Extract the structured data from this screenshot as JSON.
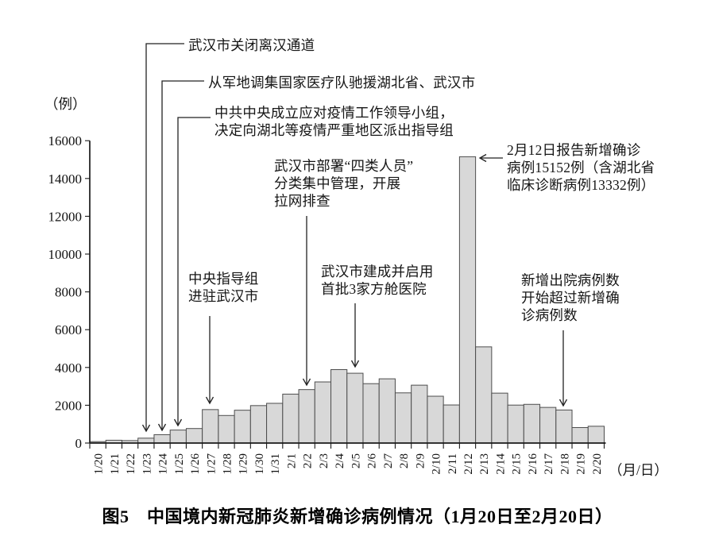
{
  "figure": {
    "y_axis_unit": "（例）",
    "x_axis_unit": "（月/日）",
    "caption": "图5　中国境内新冠肺炎新增确诊病例情况（1月20日至2月20日）"
  },
  "chart_data": {
    "type": "bar",
    "title": "图5　中国境内新冠肺炎新增确诊病例情况（1月20日至2月20日）",
    "xlabel": "（月/日）",
    "ylabel": "（例）",
    "ylim": [
      0,
      16000
    ],
    "yticks": [
      0,
      2000,
      4000,
      6000,
      8000,
      10000,
      12000,
      14000,
      16000
    ],
    "grid": false,
    "legend": "none",
    "bar_fill": "#d8d8d8",
    "bar_stroke": "#4d4d4d",
    "categories": [
      "1/20",
      "1/21",
      "1/22",
      "1/23",
      "1/24",
      "1/25",
      "1/26",
      "1/27",
      "1/28",
      "1/29",
      "1/30",
      "1/31",
      "2/1",
      "2/2",
      "2/3",
      "2/4",
      "2/5",
      "2/6",
      "2/7",
      "2/8",
      "2/9",
      "2/10",
      "2/11",
      "2/12",
      "2/13",
      "2/14",
      "2/15",
      "2/16",
      "2/17",
      "2/18",
      "2/19",
      "2/20"
    ],
    "values": [
      77,
      149,
      131,
      259,
      444,
      688,
      769,
      1771,
      1459,
      1737,
      1982,
      2102,
      2590,
      2829,
      3235,
      3887,
      3694,
      3143,
      3399,
      2656,
      3062,
      2478,
      2015,
      15152,
      5090,
      2641,
      2009,
      2048,
      1886,
      1749,
      820,
      889
    ],
    "annotations": [
      {
        "id": "a1",
        "target": "1/23",
        "text": "武汉市关闭离汉通道"
      },
      {
        "id": "a2",
        "target": "1/24",
        "text": "从军地调集国家医疗队驰援湖北省、武汉市"
      },
      {
        "id": "a3",
        "target": "1/25",
        "text": "中共中央成立应对疫情工作领导小组，\n决定向湖北等疫情严重地区派出指导组"
      },
      {
        "id": "a4",
        "target": "1/27",
        "text": "中央指导组\n进驻武汉市"
      },
      {
        "id": "a5",
        "target": "2/2",
        "text": "武汉市部署“四类人员”\n分类集中管理，开展\n拉网排查"
      },
      {
        "id": "a6",
        "target": "2/5",
        "text": "武汉市建成并启用\n首批3家方舱医院"
      },
      {
        "id": "a7",
        "target": "2/12",
        "text": "2月12日报告新增确诊\n病例15152例（含湖北省\n临床诊断病例13332例）"
      },
      {
        "id": "a8",
        "target": "2/18",
        "text": "新增出院病例数\n开始超过新增确\n诊病例数"
      }
    ]
  }
}
